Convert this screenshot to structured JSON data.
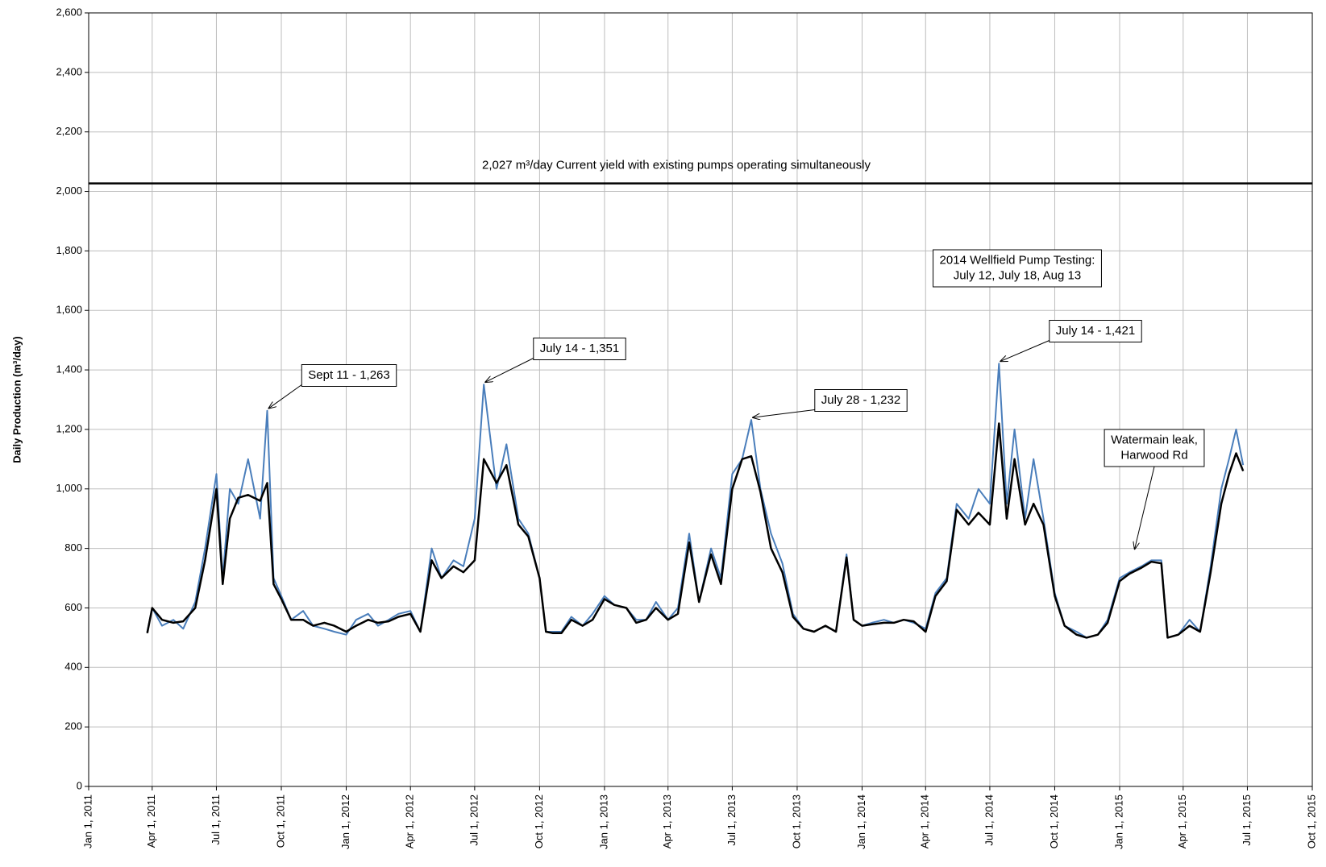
{
  "chart_data": {
    "type": "line",
    "y_label": "Daily Production (m³/day)",
    "x": [
      "2011-03-25",
      "2011-04-01",
      "2011-04-15",
      "2011-05-01",
      "2011-05-15",
      "2011-06-01",
      "2011-06-15",
      "2011-07-01",
      "2011-07-10",
      "2011-07-20",
      "2011-08-01",
      "2011-08-15",
      "2011-09-01",
      "2011-09-11",
      "2011-09-20",
      "2011-10-01",
      "2011-10-15",
      "2011-11-01",
      "2011-11-15",
      "2011-12-01",
      "2011-12-15",
      "2012-01-01",
      "2012-01-15",
      "2012-02-01",
      "2012-02-15",
      "2012-03-01",
      "2012-03-15",
      "2012-04-01",
      "2012-04-15",
      "2012-05-01",
      "2012-05-15",
      "2012-06-01",
      "2012-06-15",
      "2012-07-01",
      "2012-07-14",
      "2012-08-01",
      "2012-08-15",
      "2012-09-01",
      "2012-09-15",
      "2012-10-01",
      "2012-10-10",
      "2012-10-20",
      "2012-11-01",
      "2012-11-15",
      "2012-12-01",
      "2012-12-15",
      "2013-01-01",
      "2013-01-15",
      "2013-02-01",
      "2013-02-15",
      "2013-03-01",
      "2013-03-15",
      "2013-04-01",
      "2013-04-15",
      "2013-05-01",
      "2013-05-15",
      "2013-06-01",
      "2013-06-15",
      "2013-07-01",
      "2013-07-15",
      "2013-07-28",
      "2013-08-10",
      "2013-08-25",
      "2013-09-10",
      "2013-09-25",
      "2013-10-10",
      "2013-10-25",
      "2013-11-10",
      "2013-11-25",
      "2013-12-10",
      "2013-12-20",
      "2014-01-01",
      "2014-01-15",
      "2014-02-01",
      "2014-02-15",
      "2014-03-01",
      "2014-03-15",
      "2014-04-01",
      "2014-04-15",
      "2014-05-01",
      "2014-05-15",
      "2014-06-01",
      "2014-06-15",
      "2014-07-01",
      "2014-07-14",
      "2014-07-25",
      "2014-08-05",
      "2014-08-20",
      "2014-09-01",
      "2014-09-15",
      "2014-10-01",
      "2014-10-15",
      "2014-11-01",
      "2014-11-15",
      "2014-12-01",
      "2014-12-15",
      "2015-01-01",
      "2015-01-15",
      "2015-02-01",
      "2015-02-15",
      "2015-03-01",
      "2015-03-10",
      "2015-03-25",
      "2015-04-10",
      "2015-04-25",
      "2015-05-10",
      "2015-05-25",
      "2015-06-05",
      "2015-06-15",
      "2015-06-25"
    ],
    "series": [
      {
        "color": "#4a7ebb",
        "width": 2,
        "values": [
          520,
          600,
          540,
          560,
          530,
          620,
          800,
          1050,
          700,
          1000,
          950,
          1100,
          900,
          1263,
          700,
          640,
          560,
          590,
          540,
          530,
          520,
          510,
          560,
          580,
          540,
          560,
          580,
          590,
          520,
          800,
          700,
          760,
          740,
          900,
          1351,
          1000,
          1150,
          900,
          850,
          700,
          520,
          520,
          520,
          570,
          540,
          580,
          640,
          610,
          600,
          560,
          560,
          620,
          560,
          600,
          850,
          620,
          800,
          700,
          1050,
          1100,
          1232,
          1000,
          850,
          750,
          580,
          530,
          520,
          540,
          520,
          780,
          560,
          540,
          550,
          560,
          550,
          560,
          550,
          530,
          650,
          700,
          950,
          900,
          1000,
          950,
          1421,
          950,
          1200,
          900,
          1100,
          900,
          650,
          540,
          520,
          500,
          510,
          560,
          700,
          720,
          740,
          760,
          760,
          500,
          510,
          560,
          520,
          740,
          1000,
          1100,
          1200,
          1080
        ]
      },
      {
        "color": "#000000",
        "width": 2.5,
        "values": [
          515,
          600,
          560,
          550,
          555,
          600,
          760,
          1000,
          680,
          900,
          970,
          980,
          960,
          1020,
          680,
          630,
          560,
          560,
          540,
          550,
          540,
          520,
          540,
          560,
          550,
          555,
          570,
          580,
          520,
          760,
          700,
          740,
          720,
          760,
          1100,
          1020,
          1080,
          880,
          840,
          700,
          520,
          515,
          515,
          560,
          540,
          560,
          630,
          610,
          600,
          550,
          560,
          600,
          560,
          580,
          820,
          620,
          780,
          680,
          1000,
          1100,
          1110,
          990,
          800,
          720,
          570,
          530,
          520,
          540,
          520,
          770,
          560,
          540,
          545,
          550,
          550,
          560,
          555,
          520,
          640,
          690,
          930,
          880,
          920,
          880,
          1220,
          900,
          1100,
          880,
          950,
          880,
          640,
          540,
          510,
          500,
          510,
          550,
          690,
          715,
          735,
          755,
          750,
          500,
          510,
          540,
          520,
          720,
          950,
          1050,
          1120,
          1060
        ]
      }
    ],
    "reference_line": {
      "value": 2027,
      "label": "2,027 m³/day  Current yield with existing pumps operating simultaneously"
    },
    "annotations": [
      {
        "lines": [
          "Sept 11  -  1,263"
        ],
        "x": "2011-09-11",
        "y": 1263
      },
      {
        "lines": [
          "July 14  -  1,351"
        ],
        "x": "2012-07-14",
        "y": 1351
      },
      {
        "lines": [
          "July 28  -  1,232"
        ],
        "x": "2013-07-28",
        "y": 1232
      },
      {
        "lines": [
          "July 14  -  1,421"
        ],
        "x": "2014-07-14",
        "y": 1421
      },
      {
        "lines": [
          "2014 Wellfield Pump Testing:",
          "July 12,  July 18,  Aug 13"
        ]
      },
      {
        "lines": [
          "Watermain leak,",
          "Harwood Rd"
        ],
        "x": "2015-01-20",
        "y": 790
      }
    ],
    "xlim": [
      "2011-01-01",
      "2015-10-01"
    ],
    "xticks": [
      {
        "value": "2011-01-01",
        "label": "Jan 1, 2011"
      },
      {
        "value": "2011-04-01",
        "label": "Apr 1, 2011"
      },
      {
        "value": "2011-07-01",
        "label": "Jul 1, 2011"
      },
      {
        "value": "2011-10-01",
        "label": "Oct 1, 2011"
      },
      {
        "value": "2012-01-01",
        "label": "Jan 1, 2012"
      },
      {
        "value": "2012-04-01",
        "label": "Apr 1, 2012"
      },
      {
        "value": "2012-07-01",
        "label": "Jul 1, 2012"
      },
      {
        "value": "2012-10-01",
        "label": "Oct 1, 2012"
      },
      {
        "value": "2013-01-01",
        "label": "Jan 1, 2013"
      },
      {
        "value": "2013-04-01",
        "label": "Apr 1, 2013"
      },
      {
        "value": "2013-07-01",
        "label": "Jul 1, 2013"
      },
      {
        "value": "2013-10-01",
        "label": "Oct 1, 2013"
      },
      {
        "value": "2014-01-01",
        "label": "Jan 1, 2014"
      },
      {
        "value": "2014-04-01",
        "label": "Apr 1, 2014"
      },
      {
        "value": "2014-07-01",
        "label": "Jul 1, 2014"
      },
      {
        "value": "2014-10-01",
        "label": "Oct 1, 2014"
      },
      {
        "value": "2015-01-01",
        "label": "Jan 1, 2015"
      },
      {
        "value": "2015-04-01",
        "label": "Apr 1, 2015"
      },
      {
        "value": "2015-07-01",
        "label": "Jul 1, 2015"
      },
      {
        "value": "2015-10-01",
        "label": "Oct 1, 2015"
      }
    ],
    "ylim": [
      0,
      2600
    ],
    "yticks": [
      0,
      {
        "value": 200,
        "label": "200"
      },
      400,
      600,
      800,
      {
        "value": 1000,
        "label": "1,000"
      },
      {
        "value": 1200,
        "label": "1,200"
      },
      {
        "value": 1400,
        "label": "1,400"
      },
      {
        "value": 1600,
        "label": "1,600"
      },
      {
        "value": 1800,
        "label": "1,800"
      },
      {
        "value": 2000,
        "label": "2,000"
      },
      {
        "value": 2200,
        "label": "2,200"
      },
      {
        "value": 2400,
        "label": "2,400"
      },
      {
        "value": 2600,
        "label": "2,600"
      }
    ],
    "grid": true
  }
}
